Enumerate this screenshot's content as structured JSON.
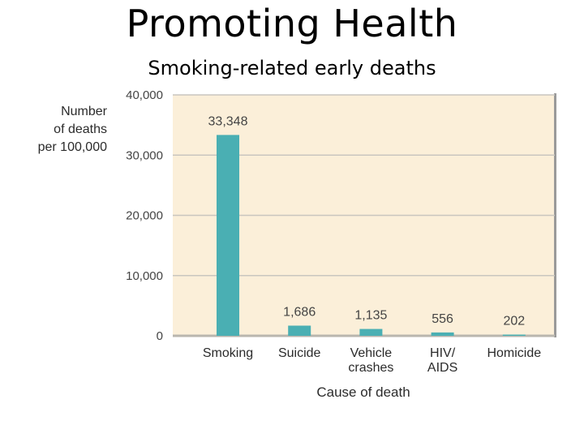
{
  "slide": {
    "title": "Promoting Health",
    "subtitle": "Smoking-related early deaths"
  },
  "chart_data": {
    "type": "bar",
    "ylabel_lines": [
      "Number",
      "of deaths",
      "per 100,000"
    ],
    "xlabel": "Cause of death",
    "categories": [
      [
        "Smoking"
      ],
      [
        "Suicide"
      ],
      [
        "Vehicle",
        "crashes"
      ],
      [
        "HIV/",
        "AIDS"
      ],
      [
        "Homicide"
      ]
    ],
    "values": [
      33348,
      1686,
      1135,
      556,
      202
    ],
    "value_labels": [
      "33,348",
      "1,686",
      "1,135",
      "556",
      "202"
    ],
    "yticks": [
      0,
      10000,
      20000,
      30000,
      40000
    ],
    "ytick_labels": [
      "0",
      "10,000",
      "20,000",
      "30,000",
      "40,000"
    ],
    "ylim": [
      0,
      40000
    ],
    "grid": true,
    "colors": {
      "bar": "#4aafb3",
      "plot_background": "#fbefd9",
      "grid": "#c9c6bf",
      "baseline": "#b9b6ae"
    }
  }
}
